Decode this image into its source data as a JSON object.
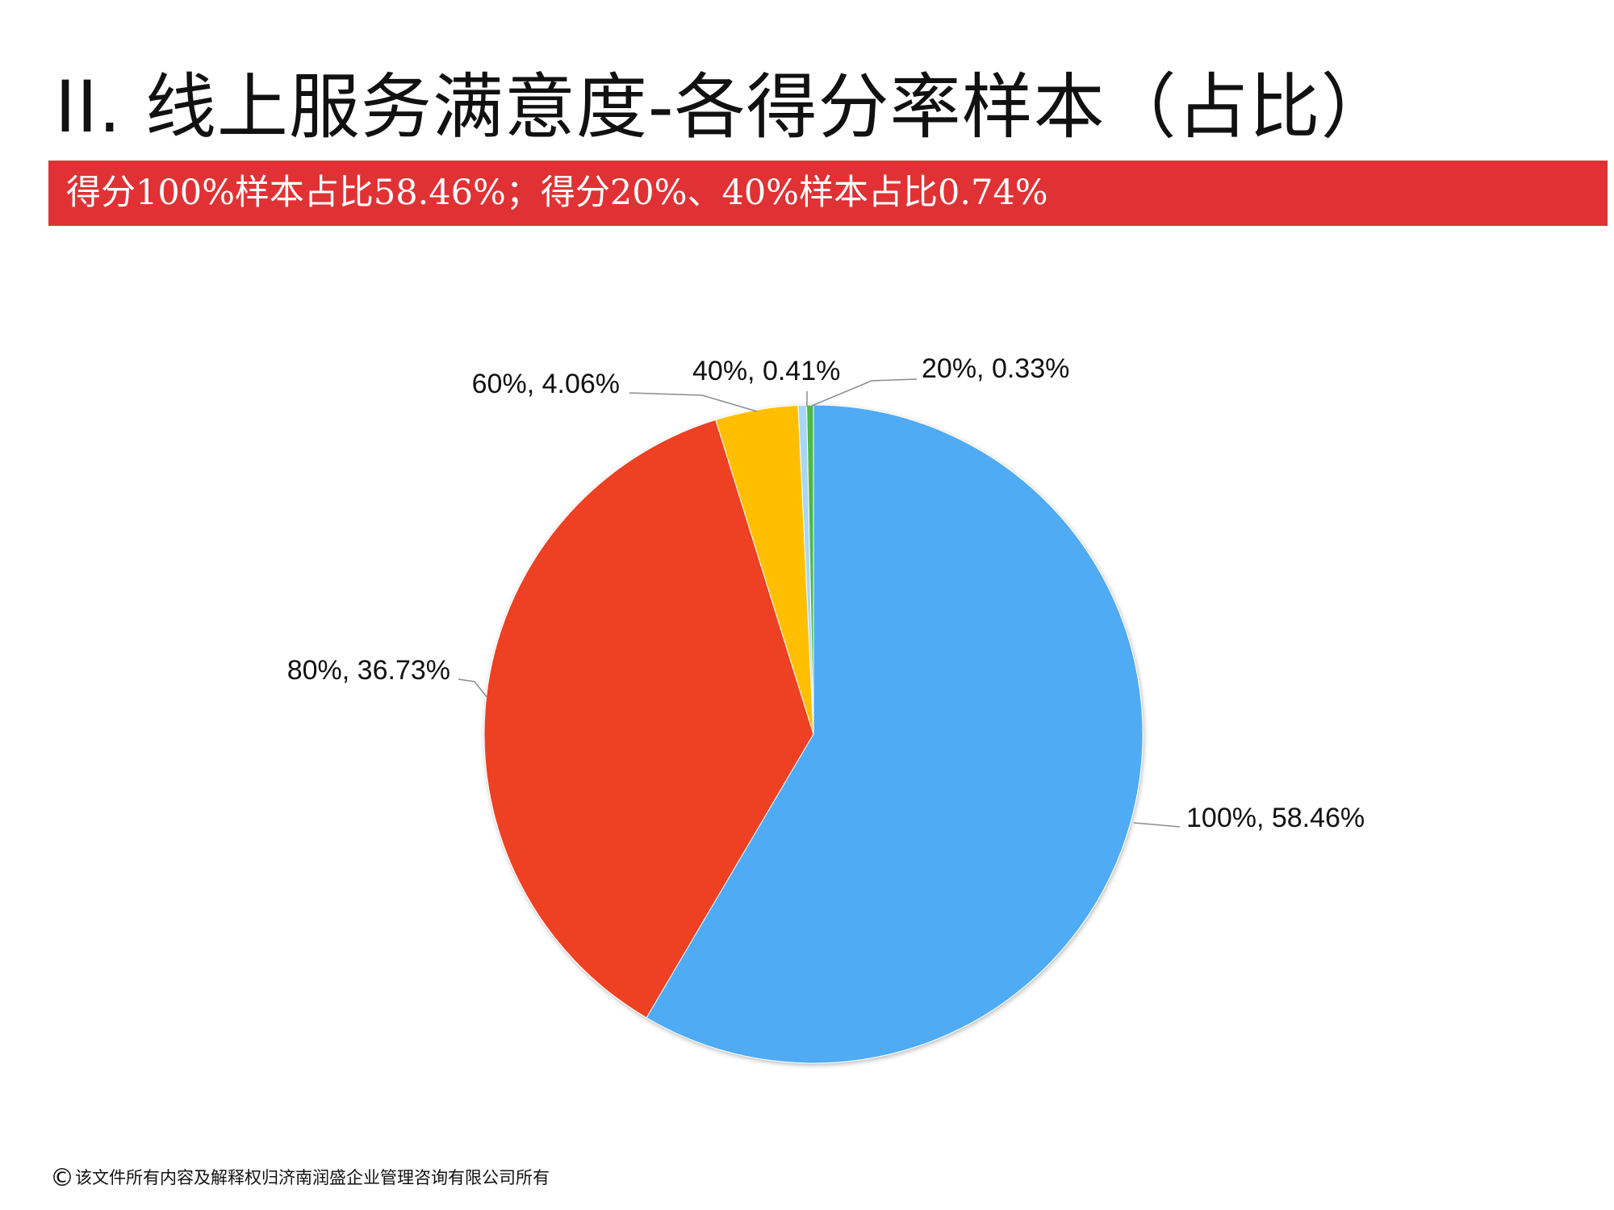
{
  "slide": {
    "title": "II.  线上服务满意度-各得分率样本（占比）",
    "banner": "得分100%样本占比58.46%；得分20%、40%样本占比0.74%",
    "footer_symbol": "©",
    "footer": "该文件所有内容及解释权归济南润盛企业管理咨询有限公司所有",
    "banner_color": "#e03235"
  },
  "chart_data": {
    "type": "pie",
    "title": "",
    "start": "12 o'clock, clockwise",
    "slices": [
      {
        "category": "100%",
        "value": 58.46,
        "label": "100%, 58.46%",
        "color": "#4fabf3"
      },
      {
        "category": "80%",
        "value": 36.73,
        "label": "80%, 36.73%",
        "color": "#ee4024"
      },
      {
        "category": "60%",
        "value": 4.06,
        "label": "60%, 4.06%",
        "color": "#ffbf00"
      },
      {
        "category": "40%",
        "value": 0.41,
        "label": "40%, 0.41%",
        "color": "#a9d6f5"
      },
      {
        "category": "20%",
        "value": 0.33,
        "label": "20%, 0.33%",
        "color": "#4cb848"
      }
    ]
  }
}
